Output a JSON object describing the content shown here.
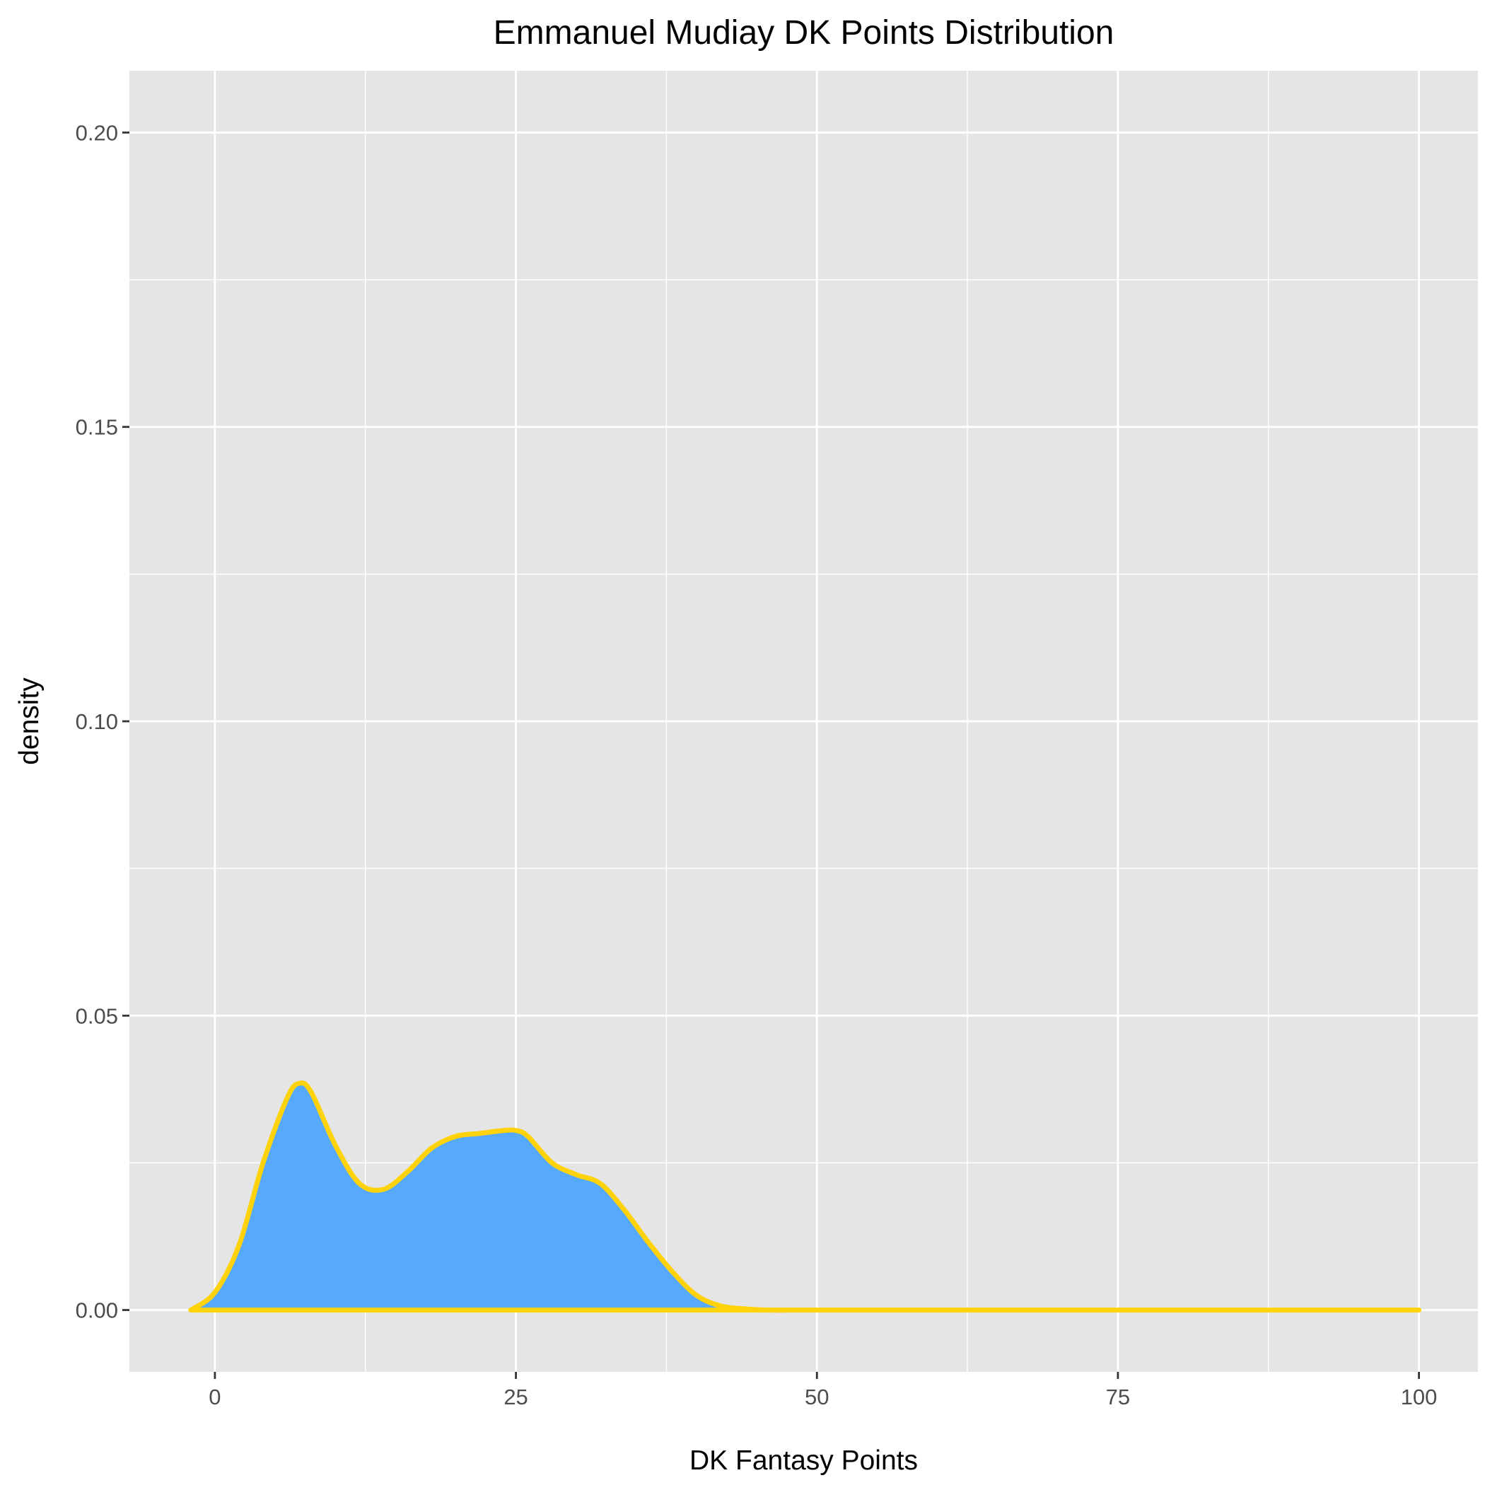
{
  "chart_data": {
    "type": "area",
    "title": "Emmanuel Mudiay DK Points Distribution",
    "xlabel": "DK Fantasy Points",
    "ylabel": "density",
    "xlim": [
      -7.1,
      104.9
    ],
    "ylim": [
      -0.0105,
      0.2105
    ],
    "x_ticks": [
      0,
      25,
      50,
      75,
      100
    ],
    "x_tick_labels": [
      "0",
      "25",
      "50",
      "75",
      "100"
    ],
    "y_ticks": [
      0.0,
      0.05,
      0.1,
      0.15,
      0.2
    ],
    "y_tick_labels": [
      "0.00",
      "0.05",
      "0.10",
      "0.15",
      "0.20"
    ],
    "grid": true,
    "legend": "none",
    "colors": {
      "fill": "#56a9fb",
      "outline": "#ffd20a",
      "panel": "#e5e5e5",
      "grid": "#ffffff"
    },
    "series": [
      {
        "x": [
          -2,
          0,
          2,
          4,
          6,
          7,
          8,
          10,
          12,
          14,
          16,
          18,
          20,
          22,
          24,
          25,
          26,
          28,
          30,
          32,
          34,
          36,
          38,
          40,
          42,
          44,
          46,
          50,
          60,
          70,
          80,
          90,
          100
        ],
        "y": [
          0.0,
          0.003,
          0.011,
          0.025,
          0.036,
          0.0385,
          0.037,
          0.028,
          0.0215,
          0.0205,
          0.0235,
          0.0275,
          0.0295,
          0.03,
          0.0305,
          0.0305,
          0.0295,
          0.025,
          0.023,
          0.0215,
          0.017,
          0.0115,
          0.0065,
          0.0025,
          0.0007,
          0.0002,
          0.0,
          0.0,
          0.0,
          0.0,
          0.0,
          0.0,
          0.0
        ]
      }
    ]
  }
}
